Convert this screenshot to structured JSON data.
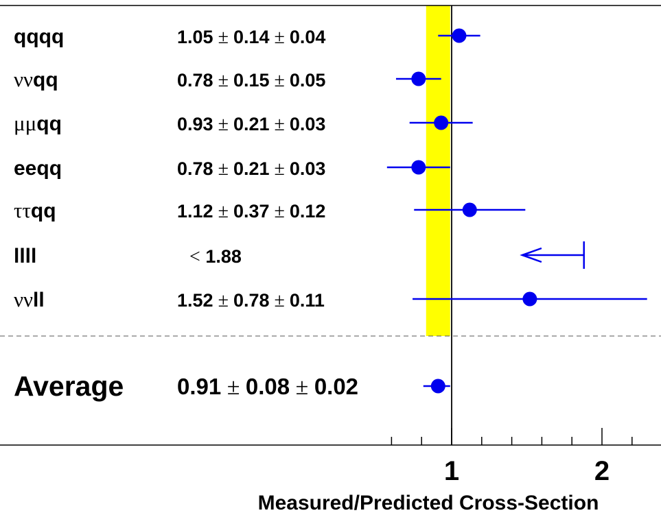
{
  "chart_data": {
    "type": "scatter",
    "xlabel": "Measured/Predicted Cross-Section",
    "xlim": [
      0.0,
      2.3
    ],
    "x_ticks": [
      "1",
      "2"
    ],
    "reference_band": [
      0.83,
      0.99
    ],
    "reference_line": 1.0,
    "colors": {
      "points": "#0000ee",
      "band": "#ffff00",
      "axis": "#000000"
    },
    "channels": [
      {
        "greek": "",
        "suffix": "qqqq",
        "result_value": "1.05",
        "errors": [
          "0.14",
          "0.04"
        ],
        "value": 1.05,
        "xmin": 0.91,
        "xmax": 1.19
      },
      {
        "greek": "νν",
        "suffix": "qq",
        "result_value": "0.78",
        "errors": [
          "0.15",
          "0.05"
        ],
        "value": 0.78,
        "xmin": 0.63,
        "xmax": 0.93
      },
      {
        "greek": "μμ",
        "suffix": "qq",
        "result_value": "0.93",
        "errors": [
          "0.21",
          "0.03"
        ],
        "value": 0.93,
        "xmin": 0.72,
        "xmax": 1.14
      },
      {
        "greek": "",
        "suffix": "eeqq",
        "result_value": "0.78",
        "errors": [
          "0.21",
          "0.03"
        ],
        "value": 0.78,
        "xmin": 0.57,
        "xmax": 0.99
      },
      {
        "greek": "ττ",
        "suffix": "qq",
        "result_value": "1.12",
        "errors": [
          "0.37",
          "0.12"
        ],
        "value": 1.12,
        "xmin": 0.75,
        "xmax": 1.49
      },
      {
        "greek": "",
        "suffix": "llll",
        "limit_symbol": "<",
        "result_value": "1.88",
        "errors": [],
        "limit": 1.88
      },
      {
        "greek": "νν",
        "suffix": "ll",
        "result_value": "1.52",
        "errors": [
          "0.78",
          "0.11"
        ],
        "value": 1.52,
        "xmin": 0.74,
        "xmax": 2.3
      }
    ],
    "average": {
      "label": "Average",
      "result_value": "0.91",
      "errors": [
        "0.08",
        "0.02"
      ],
      "value": 0.91,
      "xmin": 0.83,
      "xmax": 0.99
    },
    "pm_symbol": "±"
  }
}
